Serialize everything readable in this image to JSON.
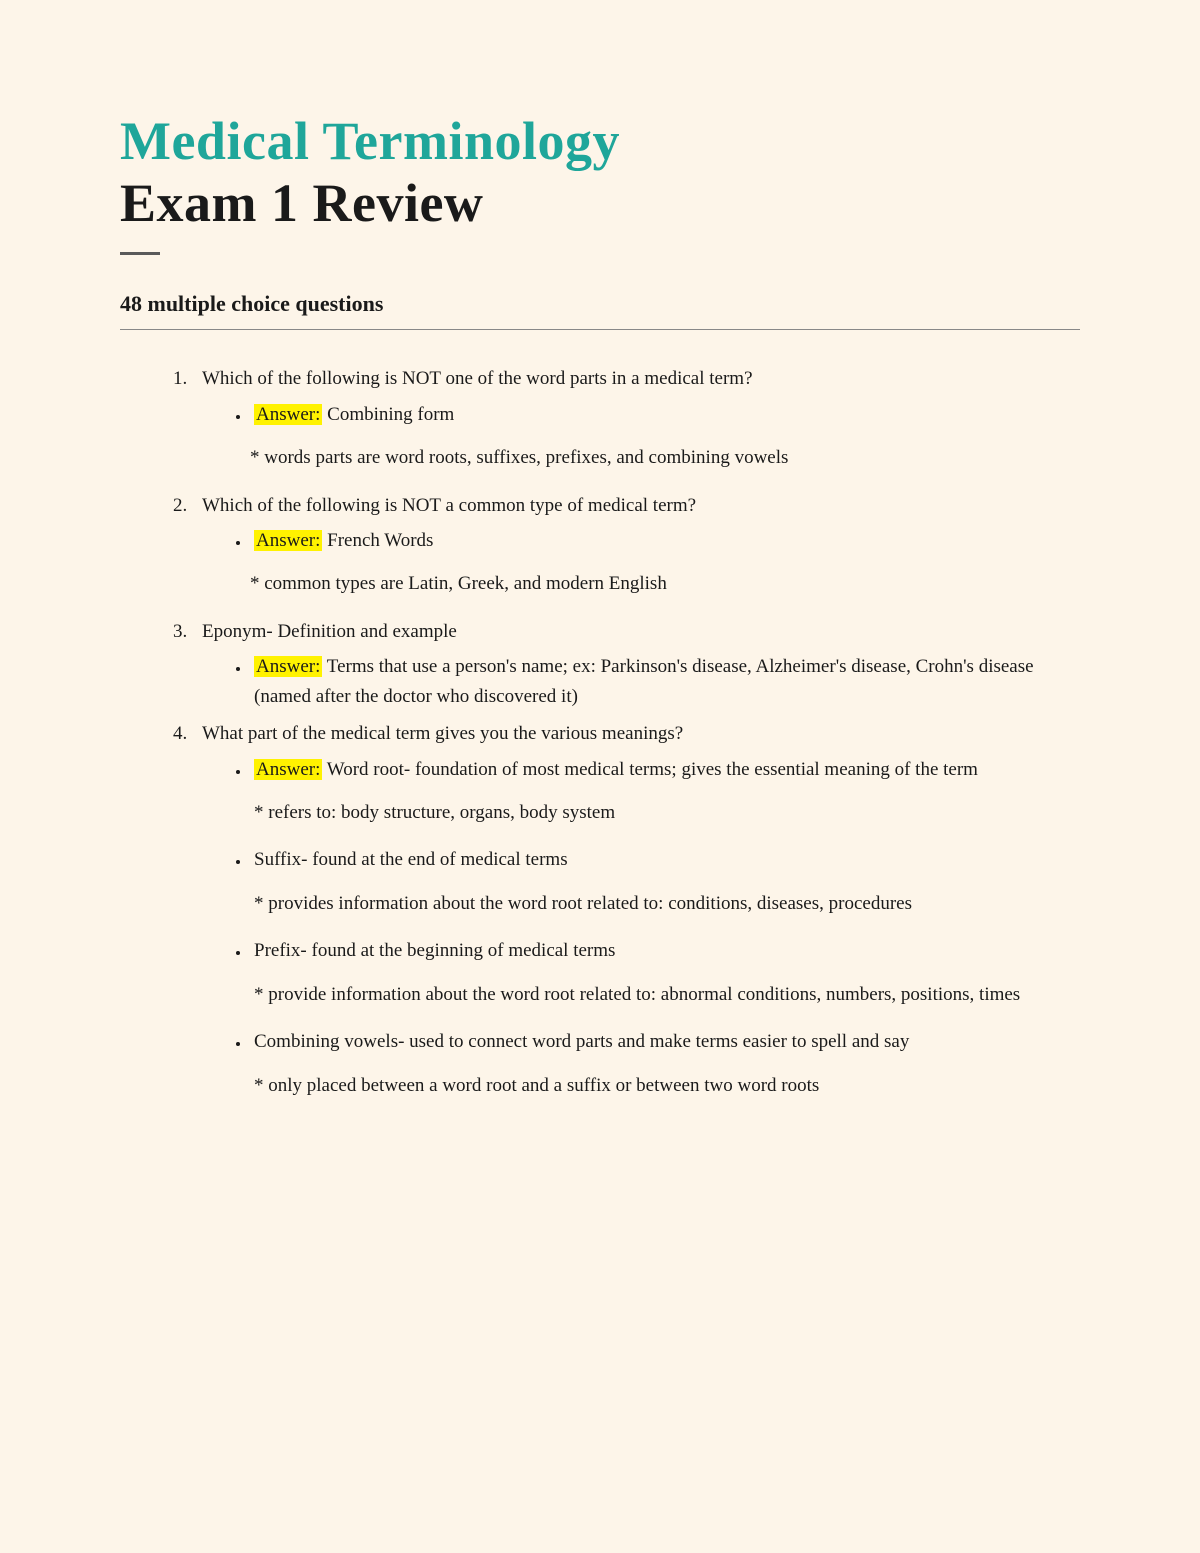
{
  "title_line1": "Medical Terminology",
  "title_line2": "Exam 1 Review",
  "subtitle": "48 multiple choice questions",
  "answer_label": "Answer:",
  "questions": [
    {
      "q": "Which of the following is NOT one of the word parts in a medical term?",
      "answer": " Combining form",
      "note": "*  words parts are word roots, suffixes, prefixes, and combining vowels"
    },
    {
      "q": "Which of the following is NOT a common type of medical term?",
      "answer": " French Words",
      "note": "* common types are Latin, Greek, and modern English"
    },
    {
      "q": "Eponym- Definition and example",
      "answer": " Terms that use a person's name; ex: Parkinson's disease, Alzheimer's disease, Crohn's disease (named after the doctor who discovered it)",
      "note": null
    },
    {
      "q": "What part of the medical term gives you the various meanings?",
      "answer": " Word root- foundation of most medical terms; gives the essential meaning of the term",
      "note": null,
      "extra": [
        {
          "text": "* refers to: body structure, organs, body system",
          "is_note": true
        },
        {
          "text": "Suffix- found at the end of medical terms",
          "is_note": false,
          "sub": "*  provides information about the word root related to: conditions, diseases, procedures"
        },
        {
          "text": "Prefix- found at the beginning of medical terms",
          "is_note": false,
          "sub": "* provide information about the word root related to: abnormal conditions, numbers, positions, times"
        },
        {
          "text": "Combining vowels- used to connect word parts and make terms easier to spell and say",
          "is_note": false,
          "sub": "* only placed between a word root and a suffix or between two word roots"
        }
      ]
    }
  ]
}
